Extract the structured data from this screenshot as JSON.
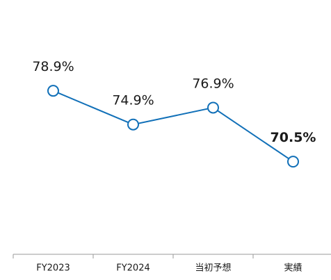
{
  "chart_data": {
    "type": "line",
    "categories": [
      "FY2023",
      "FY2024",
      "当初予想",
      "実績"
    ],
    "series": [
      {
        "color": "#1170b8",
        "values": [
          78.9,
          74.9,
          76.9,
          70.5
        ],
        "value_labels": [
          "78.9%",
          "74.9%",
          "76.9%",
          "70.5%"
        ],
        "label_colors": [
          "#1a1a1a",
          "#1a1a1a",
          "#1a1a1a",
          "#1170b8"
        ],
        "label_bold": [
          false,
          false,
          false,
          true
        ]
      }
    ],
    "ylim": [
      60,
      90
    ]
  }
}
